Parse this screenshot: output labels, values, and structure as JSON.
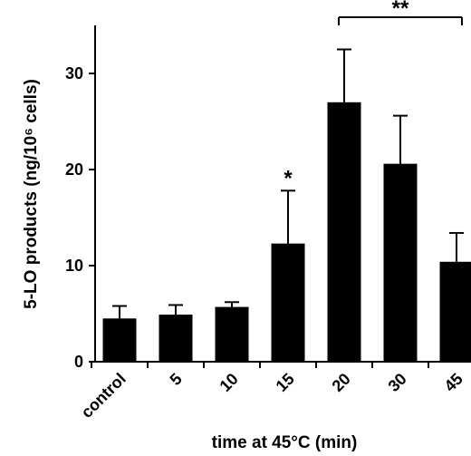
{
  "chart_data": {
    "type": "bar",
    "categories": [
      "control",
      "5",
      "10",
      "15",
      "20",
      "30",
      "45"
    ],
    "values": [
      4.5,
      4.9,
      5.7,
      12.3,
      27.0,
      20.6,
      10.4
    ],
    "errors": [
      1.3,
      1.0,
      0.5,
      5.5,
      5.5,
      5.0,
      3.0
    ],
    "xlabel": "time at 45°C (min)",
    "ylabel": "5-LO products (ng/10⁶ cells)",
    "ylim": [
      0,
      35
    ],
    "yticks": [
      "0",
      "10",
      "20",
      "30"
    ],
    "grid": false,
    "bar_color": "#000000",
    "annotations": [
      {
        "text": "*",
        "category": "15"
      },
      {
        "text": "**",
        "bracket_from": "20",
        "bracket_to": "45"
      }
    ]
  }
}
